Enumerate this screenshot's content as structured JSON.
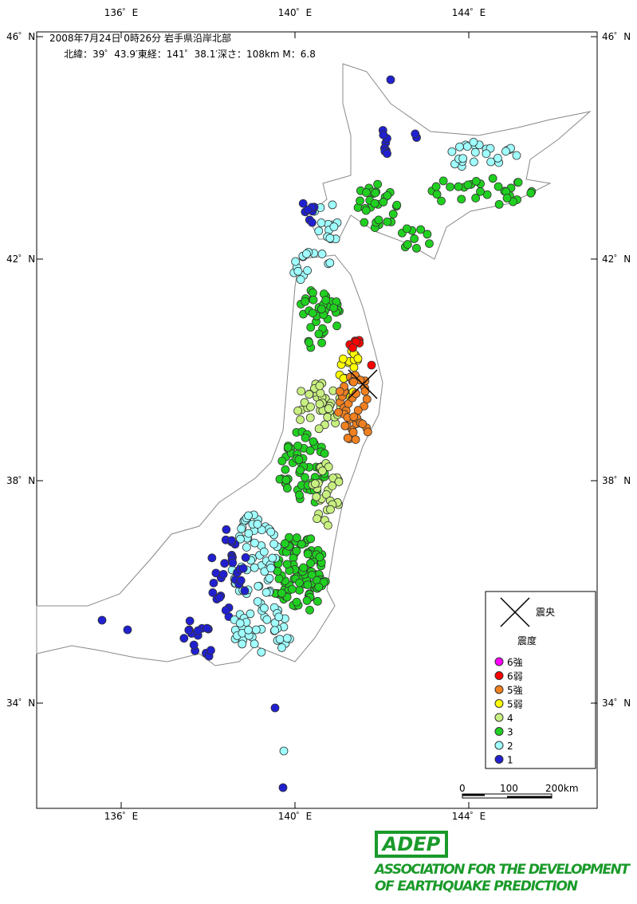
{
  "header": {
    "line1": "2008年7月24日 0時26分 岩手県沿岸北部",
    "line2": "北緯：39゜43.9′東経：141゜38.1′深さ：108km  M：6.8"
  },
  "lat_ticks": [
    "46゜N",
    "42゜N",
    "38゜N",
    "34゜N"
  ],
  "lon_ticks": [
    "136゜E",
    "140゜E",
    "144゜E"
  ],
  "legend": {
    "epicenter": "震央",
    "intensity_title": "震度",
    "items": [
      {
        "label": "6強",
        "color": "#ff00ff"
      },
      {
        "label": "6弱",
        "color": "#ff0000"
      },
      {
        "label": "5強",
        "color": "#f08020"
      },
      {
        "label": "5弱",
        "color": "#ffff00"
      },
      {
        "label": "4",
        "color": "#c8f080"
      },
      {
        "label": "3",
        "color": "#20d020"
      },
      {
        "label": "2",
        "color": "#a0ffff"
      },
      {
        "label": "1",
        "color": "#2020d0"
      }
    ]
  },
  "scale": [
    "0",
    "100",
    "200km"
  ],
  "logo": {
    "mark": "ADEP",
    "line1": "ASSOCIATION FOR THE DEVELOPMENT",
    "line2": "OF EARTHQUAKE PREDICTION"
  }
}
